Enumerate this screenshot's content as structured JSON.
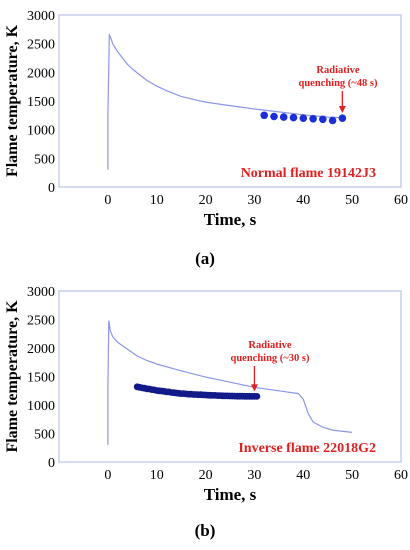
{
  "chart_data": [
    {
      "type": "line",
      "caption": "(a)",
      "xlabel": "Time, s",
      "ylabel": "Flame temperature, K",
      "xlim": [
        -10,
        60
      ],
      "ylim": [
        0,
        3000
      ],
      "x_ticks": [
        0,
        10,
        20,
        30,
        40,
        50,
        60
      ],
      "y_ticks": [
        0,
        500,
        1000,
        1500,
        2000,
        2500,
        3000
      ],
      "grid": false,
      "frame_color": "#a8b7e6",
      "series": [
        {
          "style": "line",
          "color": "#8c96e8",
          "x": [
            0,
            0,
            0.3,
            0.6,
            1,
            2,
            3,
            4,
            5,
            6,
            8,
            10,
            12,
            15,
            18,
            20,
            25,
            30,
            35,
            40,
            45,
            48
          ],
          "y": [
            300,
            1250,
            2650,
            2600,
            2500,
            2360,
            2250,
            2140,
            2060,
            1990,
            1860,
            1760,
            1680,
            1580,
            1520,
            1480,
            1420,
            1360,
            1310,
            1260,
            1220,
            1210
          ]
        },
        {
          "style": "scatter",
          "color": "#1c2fd6",
          "x": [
            32,
            34,
            36,
            38,
            40,
            42,
            44,
            46,
            48
          ],
          "y": [
            1250,
            1230,
            1220,
            1210,
            1200,
            1190,
            1180,
            1160,
            1200
          ]
        }
      ],
      "annotation": {
        "text_lines": [
          "Radiative",
          "quenching (~48 s)"
        ],
        "arrow_to": {
          "x": 48,
          "y": 1290
        },
        "color": "#e02020"
      },
      "label": {
        "text": "Normal flame 19142J3",
        "color": "#e02020"
      }
    },
    {
      "type": "line",
      "caption": "(b)",
      "xlabel": "Time, s",
      "ylabel": "Flame temperature, K",
      "xlim": [
        -10,
        60
      ],
      "ylim": [
        0,
        3000
      ],
      "x_ticks": [
        0,
        10,
        20,
        30,
        40,
        50,
        60
      ],
      "y_ticks": [
        0,
        500,
        1000,
        1500,
        2000,
        2500,
        3000
      ],
      "grid": false,
      "frame_color": "#a8b7e6",
      "series": [
        {
          "style": "line",
          "color": "#8c96e8",
          "x": [
            0,
            0,
            0.2,
            0.5,
            1,
            2,
            4,
            6,
            8,
            10,
            15,
            20,
            25,
            30,
            35,
            39,
            40,
            41,
            42,
            44,
            46,
            50
          ],
          "y": [
            300,
            1300,
            2480,
            2300,
            2200,
            2100,
            1980,
            1860,
            1780,
            1720,
            1600,
            1490,
            1400,
            1310,
            1250,
            1200,
            1100,
            850,
            700,
            610,
            560,
            520
          ]
        },
        {
          "style": "scatter",
          "color": "#121a8a",
          "x": [
            6,
            6.5,
            7,
            7.5,
            8,
            8.5,
            9,
            9.5,
            10,
            10.5,
            11,
            11.5,
            12,
            12.5,
            13,
            13.5,
            14,
            14.5,
            15,
            15.5,
            16,
            16.5,
            17,
            17.5,
            18,
            18.5,
            19,
            19.5,
            20,
            20.5,
            21,
            21.5,
            22,
            22.5,
            23,
            23.5,
            24,
            24.5,
            25,
            25.5,
            26,
            26.5,
            27,
            27.5,
            28,
            28.5,
            29,
            29.5,
            30,
            30.5
          ],
          "y": [
            1320,
            1310,
            1300,
            1295,
            1285,
            1280,
            1270,
            1265,
            1255,
            1250,
            1245,
            1240,
            1230,
            1230,
            1220,
            1215,
            1210,
            1205,
            1200,
            1200,
            1195,
            1190,
            1190,
            1185,
            1185,
            1180,
            1180,
            1178,
            1175,
            1172,
            1170,
            1168,
            1168,
            1165,
            1165,
            1162,
            1160,
            1160,
            1158,
            1158,
            1156,
            1155,
            1155,
            1154,
            1153,
            1152,
            1152,
            1151,
            1150,
            1150
          ]
        }
      ],
      "annotation": {
        "text_lines": [
          "Radiative",
          "quenching (~30 s)"
        ],
        "arrow_to": {
          "x": 30,
          "y": 1240
        },
        "color": "#e02020"
      },
      "label": {
        "text": "Inverse flame 22018G2",
        "color": "#e02020"
      }
    }
  ]
}
